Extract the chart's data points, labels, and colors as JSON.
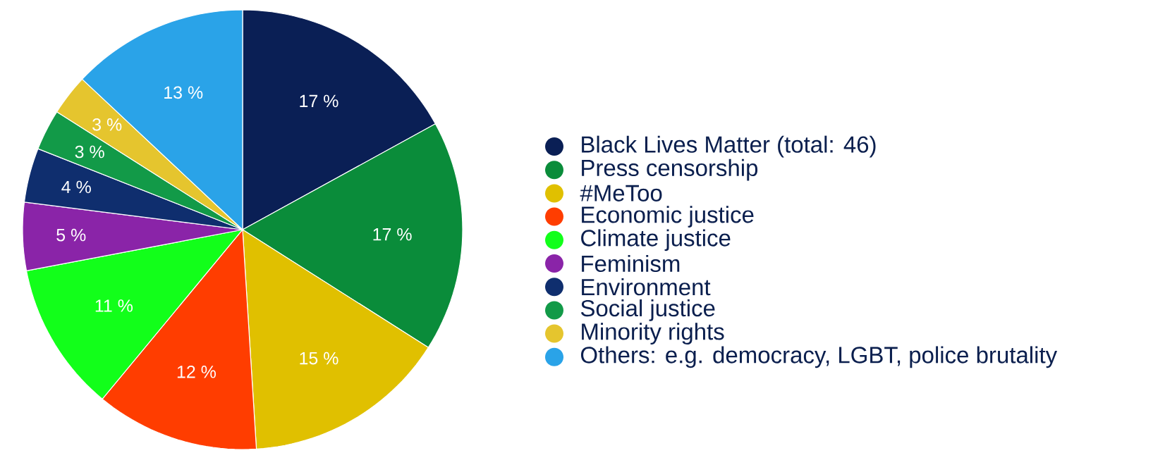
{
  "chart_data": {
    "type": "pie",
    "categories": [
      "Black Lives Matter (total: 46)",
      "Press censorship",
      "#MeToo",
      "Economic justice",
      "Climate justice",
      "Feminism",
      "Environment",
      "Social justice",
      "Minority rights",
      "Others: e.g. democracy, LGBT, police brutality"
    ],
    "values": [
      17,
      17,
      15,
      12,
      11,
      5,
      4,
      3,
      3,
      13
    ],
    "value_labels": [
      "17 %",
      "17 %",
      "15 %",
      "12 %",
      "11 %",
      "5 %",
      "4 %",
      "3 %",
      "3 %",
      "13 %"
    ],
    "colors": [
      "#0a1f55",
      "#0a8c3a",
      "#e0c000",
      "#ff3d00",
      "#12ff1a",
      "#8a24a8",
      "#0f2e6e",
      "#129a48",
      "#e5c52e",
      "#2aa3e8"
    ],
    "legend": "right"
  }
}
